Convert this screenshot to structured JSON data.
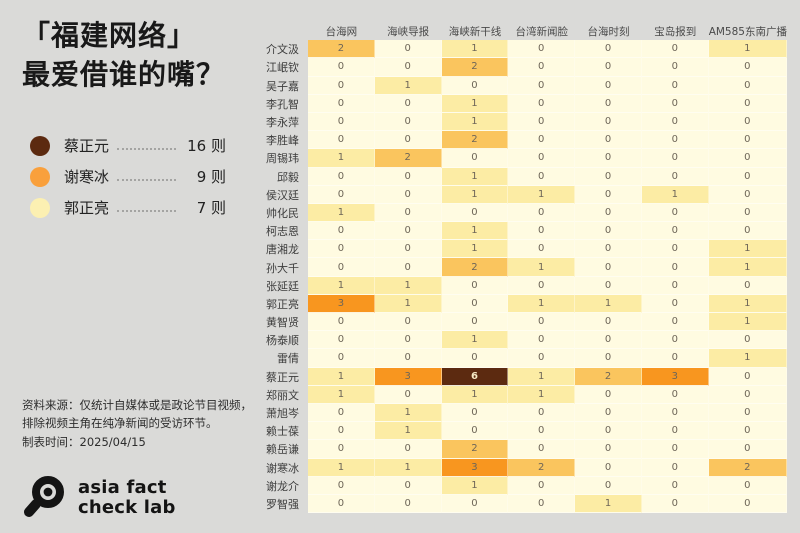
{
  "page": {
    "background": "#DADAD8"
  },
  "header": {
    "title_line1": "「福建网络」",
    "title_line2": "最爱借谁的嘴？"
  },
  "legend": {
    "items": [
      {
        "name": "蔡正元",
        "count": "16 则",
        "color": "#5C2A10"
      },
      {
        "name": "谢寒冰",
        "count": "9 则",
        "color": "#F9A03C"
      },
      {
        "name": "郭正亮",
        "count": "7 则",
        "color": "#FCF0B2"
      }
    ]
  },
  "footer": {
    "source_line1": "资料来源：仅统计自媒体或是政论节目视频，",
    "source_line2": "排除视频主角在纯净新闻的受访环节。",
    "source_line3": "制表时间：2025/04/15",
    "logo_line1": "asia fact",
    "logo_line2": "check lab"
  },
  "chart_data": {
    "type": "heatmap",
    "title": "「福建网络」最爱借谁的嘴？",
    "columns": [
      "台海网",
      "海峡导报",
      "海峡新干线",
      "台湾新闻脸",
      "台海时刻",
      "宝岛报到",
      "AM585东南广播"
    ],
    "rows": [
      {
        "name": "介文汲",
        "values": [
          2,
          0,
          1,
          0,
          0,
          0,
          1
        ]
      },
      {
        "name": "江岷钦",
        "values": [
          0,
          0,
          2,
          0,
          0,
          0,
          0
        ]
      },
      {
        "name": "吴子嘉",
        "values": [
          0,
          1,
          0,
          0,
          0,
          0,
          0
        ]
      },
      {
        "name": "李孔智",
        "values": [
          0,
          0,
          1,
          0,
          0,
          0,
          0
        ]
      },
      {
        "name": "李永萍",
        "values": [
          0,
          0,
          1,
          0,
          0,
          0,
          0
        ]
      },
      {
        "name": "李胜峰",
        "values": [
          0,
          0,
          2,
          0,
          0,
          0,
          0
        ]
      },
      {
        "name": "周锡玮",
        "values": [
          1,
          2,
          0,
          0,
          0,
          0,
          0
        ]
      },
      {
        "name": "邱毅",
        "values": [
          0,
          0,
          1,
          0,
          0,
          0,
          0
        ]
      },
      {
        "name": "侯汉廷",
        "values": [
          0,
          0,
          1,
          1,
          0,
          1,
          0
        ]
      },
      {
        "name": "帅化民",
        "values": [
          1,
          0,
          0,
          0,
          0,
          0,
          0
        ]
      },
      {
        "name": "柯志恩",
        "values": [
          0,
          0,
          1,
          0,
          0,
          0,
          0
        ]
      },
      {
        "name": "唐湘龙",
        "values": [
          0,
          0,
          1,
          0,
          0,
          0,
          1
        ]
      },
      {
        "name": "孙大千",
        "values": [
          0,
          0,
          2,
          1,
          0,
          0,
          1
        ]
      },
      {
        "name": "张延廷",
        "values": [
          1,
          1,
          0,
          0,
          0,
          0,
          0
        ]
      },
      {
        "name": "郭正亮",
        "values": [
          3,
          1,
          0,
          1,
          1,
          0,
          1
        ]
      },
      {
        "name": "黄智贤",
        "values": [
          0,
          0,
          0,
          0,
          0,
          0,
          1
        ]
      },
      {
        "name": "杨泰顺",
        "values": [
          0,
          0,
          1,
          0,
          0,
          0,
          0
        ]
      },
      {
        "name": "雷倩",
        "values": [
          0,
          0,
          0,
          0,
          0,
          0,
          1
        ]
      },
      {
        "name": "蔡正元",
        "values": [
          1,
          3,
          6,
          1,
          2,
          3,
          0
        ]
      },
      {
        "name": "郑丽文",
        "values": [
          1,
          0,
          1,
          1,
          0,
          0,
          0
        ]
      },
      {
        "name": "萧旭岑",
        "values": [
          0,
          1,
          0,
          0,
          0,
          0,
          0
        ]
      },
      {
        "name": "赖士葆",
        "values": [
          0,
          1,
          0,
          0,
          0,
          0,
          0
        ]
      },
      {
        "name": "赖岳谦",
        "values": [
          0,
          0,
          2,
          0,
          0,
          0,
          0
        ]
      },
      {
        "name": "谢寒冰",
        "values": [
          1,
          1,
          3,
          2,
          0,
          0,
          2
        ]
      },
      {
        "name": "谢龙介",
        "values": [
          0,
          0,
          1,
          0,
          0,
          0,
          0
        ]
      },
      {
        "name": "罗智强",
        "values": [
          0,
          0,
          0,
          0,
          1,
          0,
          0
        ]
      }
    ],
    "color_scale": {
      "0": "#FFFBE1",
      "1": "#FCECA4",
      "2": "#FAC55E",
      "3": "#F8961F",
      "6": "#5C2A10"
    },
    "high_value_text_color": "#F7EBC6",
    "cell_text_color": "#6E6658",
    "legend_position": "left",
    "grid": false
  }
}
